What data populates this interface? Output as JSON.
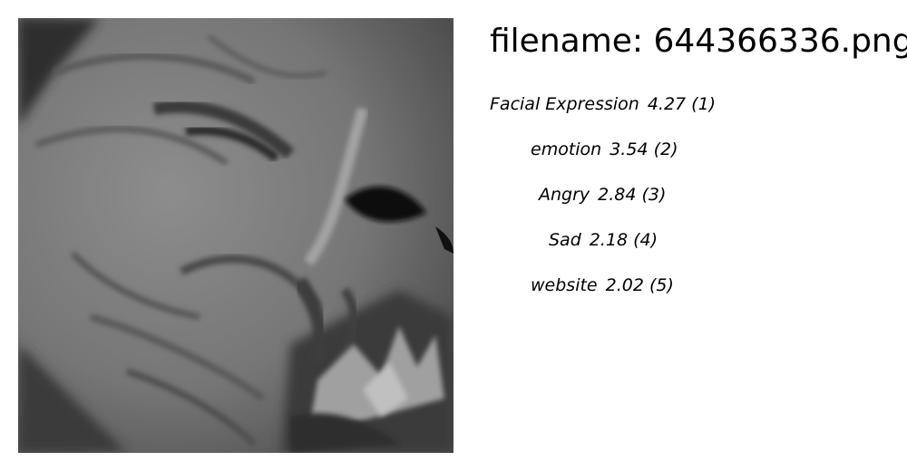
{
  "header": {
    "filename": "filename: 644366336.png"
  },
  "image": {
    "icon": "grayscale-face-photo"
  },
  "labels": [
    {
      "name": "Facial Expression",
      "score": "4.27",
      "rank": "(1)"
    },
    {
      "name": "emotion",
      "score": "3.54",
      "rank": "(2)"
    },
    {
      "name": "Angry",
      "score": "2.84",
      "rank": "(3)"
    },
    {
      "name": "Sad",
      "score": "2.18",
      "rank": "(4)"
    },
    {
      "name": "website",
      "score": "2.02",
      "rank": "(5)"
    }
  ]
}
